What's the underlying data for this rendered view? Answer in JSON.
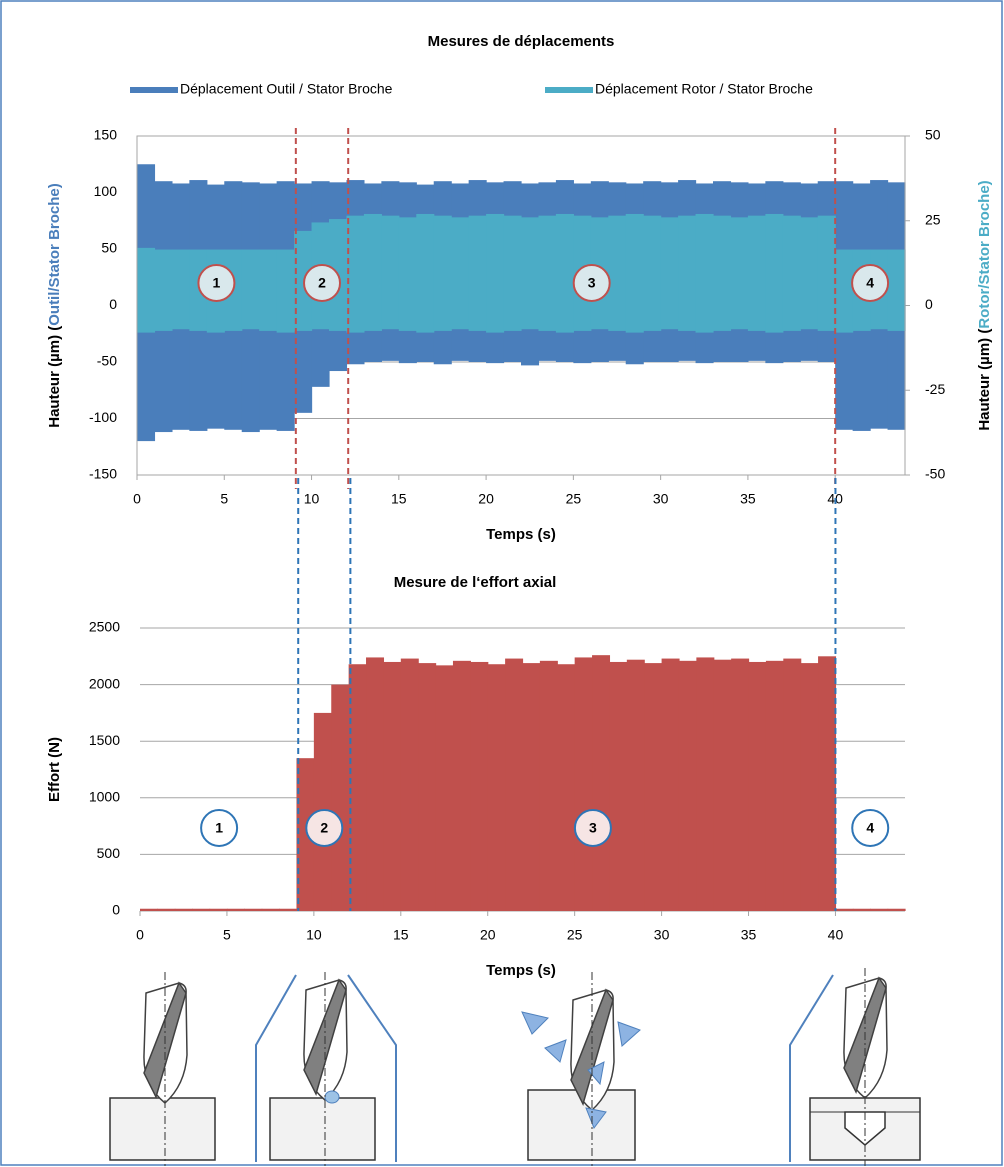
{
  "chart_data": [
    {
      "type": "range",
      "title": "Mesures de déplacements",
      "x": [
        0,
        1,
        2,
        3,
        4,
        5,
        6,
        7,
        8,
        9,
        10,
        11,
        12,
        13,
        14,
        15,
        16,
        17,
        18,
        19,
        20,
        21,
        22,
        23,
        24,
        25,
        26,
        27,
        28,
        29,
        30,
        31,
        32,
        33,
        34,
        35,
        36,
        37,
        38,
        39,
        40,
        41,
        42,
        43
      ],
      "series": [
        {
          "name": "Déplacement Outil  / Stator Broche",
          "color": "#4a7ebb",
          "axis": "y",
          "upper": [
            125,
            110,
            108,
            111,
            107,
            110,
            109,
            108,
            110,
            108,
            110,
            109,
            111,
            108,
            110,
            109,
            107,
            110,
            108,
            111,
            109,
            110,
            108,
            109,
            111,
            108,
            110,
            109,
            108,
            110,
            109,
            111,
            108,
            110,
            109,
            108,
            110,
            109,
            108,
            110,
            110,
            108,
            111,
            109
          ],
          "lower": [
            -120,
            -112,
            -110,
            -111,
            -109,
            -110,
            -112,
            -110,
            -111,
            -95,
            -72,
            -58,
            -52,
            -50,
            -49,
            -51,
            -50,
            -52,
            -49,
            -50,
            -51,
            -50,
            -53,
            -49,
            -50,
            -51,
            -50,
            -49,
            -52,
            -50,
            -50,
            -49,
            -51,
            -50,
            -50,
            -49,
            -51,
            -50,
            -49,
            -50,
            -110,
            -111,
            -109,
            -110
          ]
        },
        {
          "name": "Déplacement Rotor  / Stator Broche",
          "color": "#4bacc6",
          "axis": "y2",
          "upper": [
            17,
            16.5,
            16.5,
            16.5,
            16.5,
            16.5,
            16.5,
            16.5,
            16.5,
            22,
            24.5,
            25.5,
            26.5,
            27,
            26.5,
            26,
            27,
            26.5,
            26,
            26.5,
            27,
            26.5,
            26,
            26.5,
            27,
            26.5,
            26,
            26.5,
            27,
            26.5,
            26,
            26.5,
            27,
            26.5,
            26,
            26.5,
            27,
            26.5,
            26,
            26.5,
            16.5,
            16.5,
            16.5,
            16.5
          ],
          "lower": [
            -8,
            -7.5,
            -7,
            -7.5,
            -8,
            -7.5,
            -7,
            -7.5,
            -8,
            -7.5,
            -7,
            -7.5,
            -8,
            -7.5,
            -7,
            -7.5,
            -8,
            -7.5,
            -7,
            -7.5,
            -8,
            -7.5,
            -7,
            -7.5,
            -8,
            -7.5,
            -7,
            -7.5,
            -8,
            -7.5,
            -7,
            -7.5,
            -8,
            -7.5,
            -7,
            -7.5,
            -8,
            -7.5,
            -7,
            -7.5,
            -8,
            -7.5,
            -7,
            -7.5
          ]
        }
      ],
      "xlim": [
        0,
        44
      ],
      "xticks": [
        0,
        5,
        10,
        15,
        20,
        25,
        30,
        35,
        40
      ],
      "ylim": [
        -150,
        150
      ],
      "yticks": [
        -150,
        -100,
        -50,
        0,
        50,
        100,
        150
      ],
      "y2lim": [
        -50,
        50
      ],
      "y2ticks": [
        -50,
        -25,
        0,
        25,
        50
      ],
      "x_label": "Temps (s)",
      "y_label": [
        "Hauteur (µm) (",
        "Outil/Stator Broche)"
      ],
      "y2_label": [
        "Hauteur (µm) (",
        "Rotor/Stator Broche)"
      ],
      "grid": true,
      "phases": {
        "labels": [
          "1",
          "2",
          "3",
          "4"
        ],
        "boundaries": [
          9.1,
          12.1,
          40
        ],
        "color": "#c0504d"
      }
    },
    {
      "type": "bar",
      "title": "Mesure de l‘effort axial",
      "x": [
        0,
        1,
        2,
        3,
        4,
        5,
        6,
        7,
        8,
        9,
        10,
        11,
        12,
        13,
        14,
        15,
        16,
        17,
        18,
        19,
        20,
        21,
        22,
        23,
        24,
        25,
        26,
        27,
        28,
        29,
        30,
        31,
        32,
        33,
        34,
        35,
        36,
        37,
        38,
        39,
        40,
        41,
        42,
        43
      ],
      "values": [
        20,
        20,
        20,
        20,
        20,
        20,
        20,
        20,
        20,
        1350,
        1750,
        2000,
        2180,
        2240,
        2200,
        2230,
        2190,
        2170,
        2210,
        2200,
        2180,
        2230,
        2190,
        2210,
        2180,
        2240,
        2260,
        2200,
        2220,
        2190,
        2230,
        2210,
        2240,
        2220,
        2230,
        2200,
        2210,
        2230,
        2190,
        2250,
        20,
        20,
        20,
        20
      ],
      "color": "#c0504d",
      "xlim": [
        0,
        44
      ],
      "xticks": [
        0,
        5,
        10,
        15,
        20,
        25,
        30,
        35,
        40
      ],
      "ylim": [
        0,
        2500
      ],
      "yticks": [
        0,
        500,
        1000,
        1500,
        2000,
        2500
      ],
      "x_label": "Temps (s)",
      "y_label": [
        "Effort (N)"
      ],
      "grid": true,
      "phases": {
        "labels": [
          "1",
          "2",
          "3",
          "4"
        ],
        "boundaries": [
          9.1,
          12.1,
          40
        ],
        "color": "#2e75b6"
      }
    }
  ]
}
